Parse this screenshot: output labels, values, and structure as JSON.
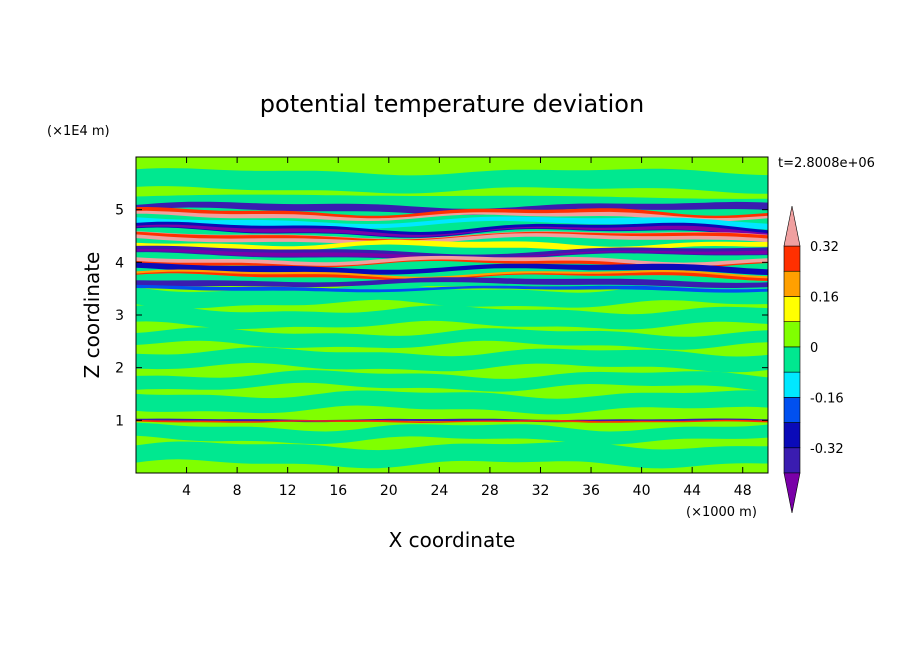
{
  "chart_data": {
    "type": "heatmap",
    "title": "potential temperature deviation",
    "xlabel": "X coordinate",
    "ylabel": "Z coordinate",
    "x_unit": "(×1000 m)",
    "y_unit": "(×1E4 m)",
    "time_label": "t=2.8008e+06",
    "xlim": [
      0,
      50
    ],
    "ylim": [
      0,
      6
    ],
    "x_ticks": [
      "4",
      "8",
      "12",
      "16",
      "20",
      "24",
      "28",
      "32",
      "36",
      "40",
      "44",
      "48"
    ],
    "y_ticks": [
      "1",
      "2",
      "3",
      "4",
      "5"
    ],
    "colorbar": {
      "levels": [
        -0.4,
        -0.32,
        -0.24,
        -0.16,
        -0.08,
        0,
        0.08,
        0.16,
        0.24,
        0.32,
        0.4
      ],
      "tick_labels": [
        "0.32",
        "0.16",
        "0",
        "-0.16",
        "-0.32"
      ],
      "colors_low_to_high": [
        "#7a00a8",
        "#3a1cb0",
        "#0a0ab8",
        "#0050f0",
        "#00e8ff",
        "#00e890",
        "#80ff00",
        "#ffff00",
        "#ffa000",
        "#ff3000",
        "#f0a0a0"
      ],
      "extend": "both"
    },
    "bands": [
      {
        "z_center": 5.2,
        "pattern": "green-band"
      },
      {
        "z_center": 5.02,
        "pattern": "blue-purple"
      },
      {
        "z_center": 4.9,
        "pattern": "red-pink"
      },
      {
        "z_center": 4.75,
        "pattern": "cyan-green"
      },
      {
        "z_center": 4.6,
        "pattern": "blue-purple"
      },
      {
        "z_center": 4.45,
        "pattern": "pink-red"
      },
      {
        "z_center": 4.3,
        "pattern": "green-yellow"
      },
      {
        "z_center": 4.15,
        "pattern": "blue-purple"
      },
      {
        "z_center": 4.0,
        "pattern": "red-pink"
      },
      {
        "z_center": 3.88,
        "pattern": "blue-purple"
      },
      {
        "z_center": 3.75,
        "pattern": "red-orange"
      },
      {
        "z_center": 3.6,
        "pattern": "blue-purple"
      },
      {
        "z_center": 1.0,
        "pattern": "thin-red-blue"
      }
    ]
  }
}
